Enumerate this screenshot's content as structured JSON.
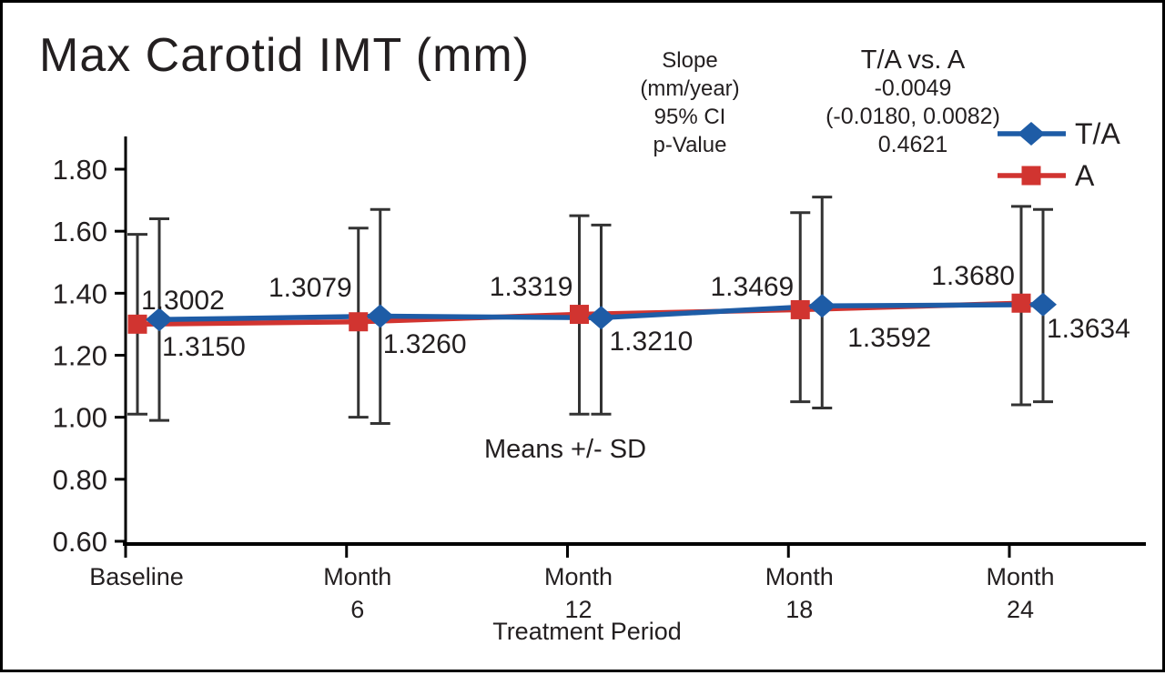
{
  "title": "Max Carotid IMT (mm)",
  "stats": {
    "row_labels": [
      "Slope",
      "(mm/year)",
      "95% CI",
      "p-Value"
    ],
    "comparison_header": "T/A vs. A",
    "slope_value": "-0.0049",
    "ci_value": "(-0.0180, 0.0082)",
    "p_value": "0.4621"
  },
  "colors": {
    "ta_blue": "#1e5ca6",
    "a_red": "#d13430",
    "error_bar": "#333333",
    "text": "#231f20"
  },
  "legend": [
    {
      "label": "T/A",
      "marker": "diamond",
      "color": "#1e5ca6"
    },
    {
      "label": "A",
      "marker": "square",
      "color": "#d13430"
    }
  ],
  "chart_data": {
    "type": "line",
    "title": "Max Carotid IMT (mm)",
    "xlabel": "Treatment Period",
    "ylabel": "",
    "ylim": [
      0.6,
      1.8
    ],
    "ytick_labels": [
      "1.80",
      "1.60",
      "1.40",
      "1.20",
      "1.00",
      "0.80",
      "0.60"
    ],
    "categories": [
      "Baseline",
      "Month 6",
      "Month 12",
      "Month 18",
      "Month 24"
    ],
    "category_label_lines": [
      [
        "Baseline"
      ],
      [
        "Month",
        "6"
      ],
      [
        "Month",
        "12"
      ],
      [
        "Month",
        "18"
      ],
      [
        "Month",
        "24"
      ]
    ],
    "annotation": "Means +/- SD",
    "grid": false,
    "legend_position": "top-right",
    "series": [
      {
        "name": "A",
        "marker": "square",
        "color": "#d13430",
        "values": [
          1.3002,
          1.3079,
          1.3319,
          1.3469,
          1.368
        ],
        "point_labels": [
          "1.3002",
          "1.3079",
          "1.3319",
          "1.3469",
          "1.3680"
        ],
        "error_high": [
          1.59,
          1.61,
          1.65,
          1.66,
          1.68
        ],
        "error_low": [
          1.01,
          1.0,
          1.01,
          1.05,
          1.04
        ]
      },
      {
        "name": "T/A",
        "marker": "diamond",
        "color": "#1e5ca6",
        "values": [
          1.315,
          1.326,
          1.321,
          1.3592,
          1.3634
        ],
        "point_labels": [
          "1.3150",
          "1.3260",
          "1.3210",
          "1.3592",
          "1.3634"
        ],
        "error_high": [
          1.64,
          1.67,
          1.62,
          1.71,
          1.67
        ],
        "error_low": [
          0.99,
          0.98,
          1.01,
          1.03,
          1.05
        ]
      }
    ]
  }
}
